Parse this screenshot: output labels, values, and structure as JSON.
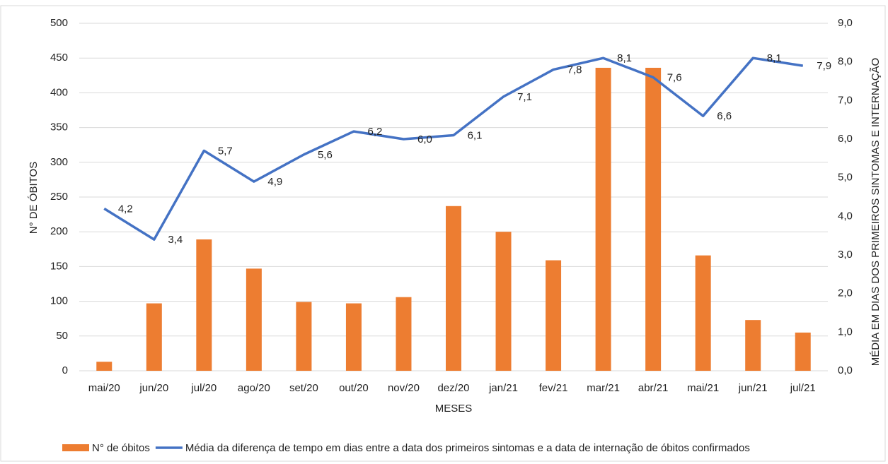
{
  "chart_data": {
    "type": "bar-line",
    "categories": [
      "mai/20",
      "jun/20",
      "jul/20",
      "ago/20",
      "set/20",
      "out/20",
      "nov/20",
      "dez/20",
      "jan/21",
      "fev/21",
      "mar/21",
      "abr/21",
      "mai/21",
      "jun/21",
      "jul/21"
    ],
    "series": [
      {
        "name": "N° de óbitos",
        "type": "bar",
        "color": "#ed7d31",
        "values": [
          13,
          97,
          189,
          147,
          99,
          97,
          106,
          237,
          200,
          159,
          436,
          436,
          166,
          73,
          55
        ]
      },
      {
        "name": "Média da diferença de tempo em dias entre a data dos primeiros sintomas e a data de internação de óbitos confirmados",
        "type": "line",
        "axis": "y2",
        "color": "#4472c4",
        "values": [
          4.2,
          3.4,
          5.7,
          4.9,
          5.6,
          6.2,
          6.0,
          6.1,
          7.1,
          7.8,
          8.1,
          7.6,
          6.6,
          8.1,
          7.9
        ],
        "value_labels": [
          "4,2",
          "3,4",
          "5,7",
          "4,9",
          "5,6",
          "6,2",
          "6,0",
          "6,1",
          "7,1",
          "7,8",
          "8,1",
          "7,6",
          "6,6",
          "8,1",
          "7,9"
        ]
      }
    ],
    "x_label": "MESES",
    "y_label": "N° DE ÓBITOS",
    "y2_label": "MÉDIA EM DIAS DOS PRIMEIROS SINTOMAS E INTERNAÇÃO",
    "ylim": [
      0,
      500
    ],
    "yticks": [
      0,
      50,
      100,
      150,
      200,
      250,
      300,
      350,
      400,
      450,
      500
    ],
    "y2lim": [
      0,
      9
    ],
    "y2ticks": [
      {
        "value": 0,
        "label": "0,0"
      },
      {
        "value": 1,
        "label": "1,0"
      },
      {
        "value": 2,
        "label": "2,0"
      },
      {
        "value": 3,
        "label": "3,0"
      },
      {
        "value": 4,
        "label": "4,0"
      },
      {
        "value": 5,
        "label": "5,0"
      },
      {
        "value": 6,
        "label": "6,0"
      },
      {
        "value": 7,
        "label": "7,0"
      },
      {
        "value": 8,
        "label": "8,0"
      },
      {
        "value": 9,
        "label": "9,0"
      }
    ],
    "grid": true,
    "legend": "bottom"
  }
}
